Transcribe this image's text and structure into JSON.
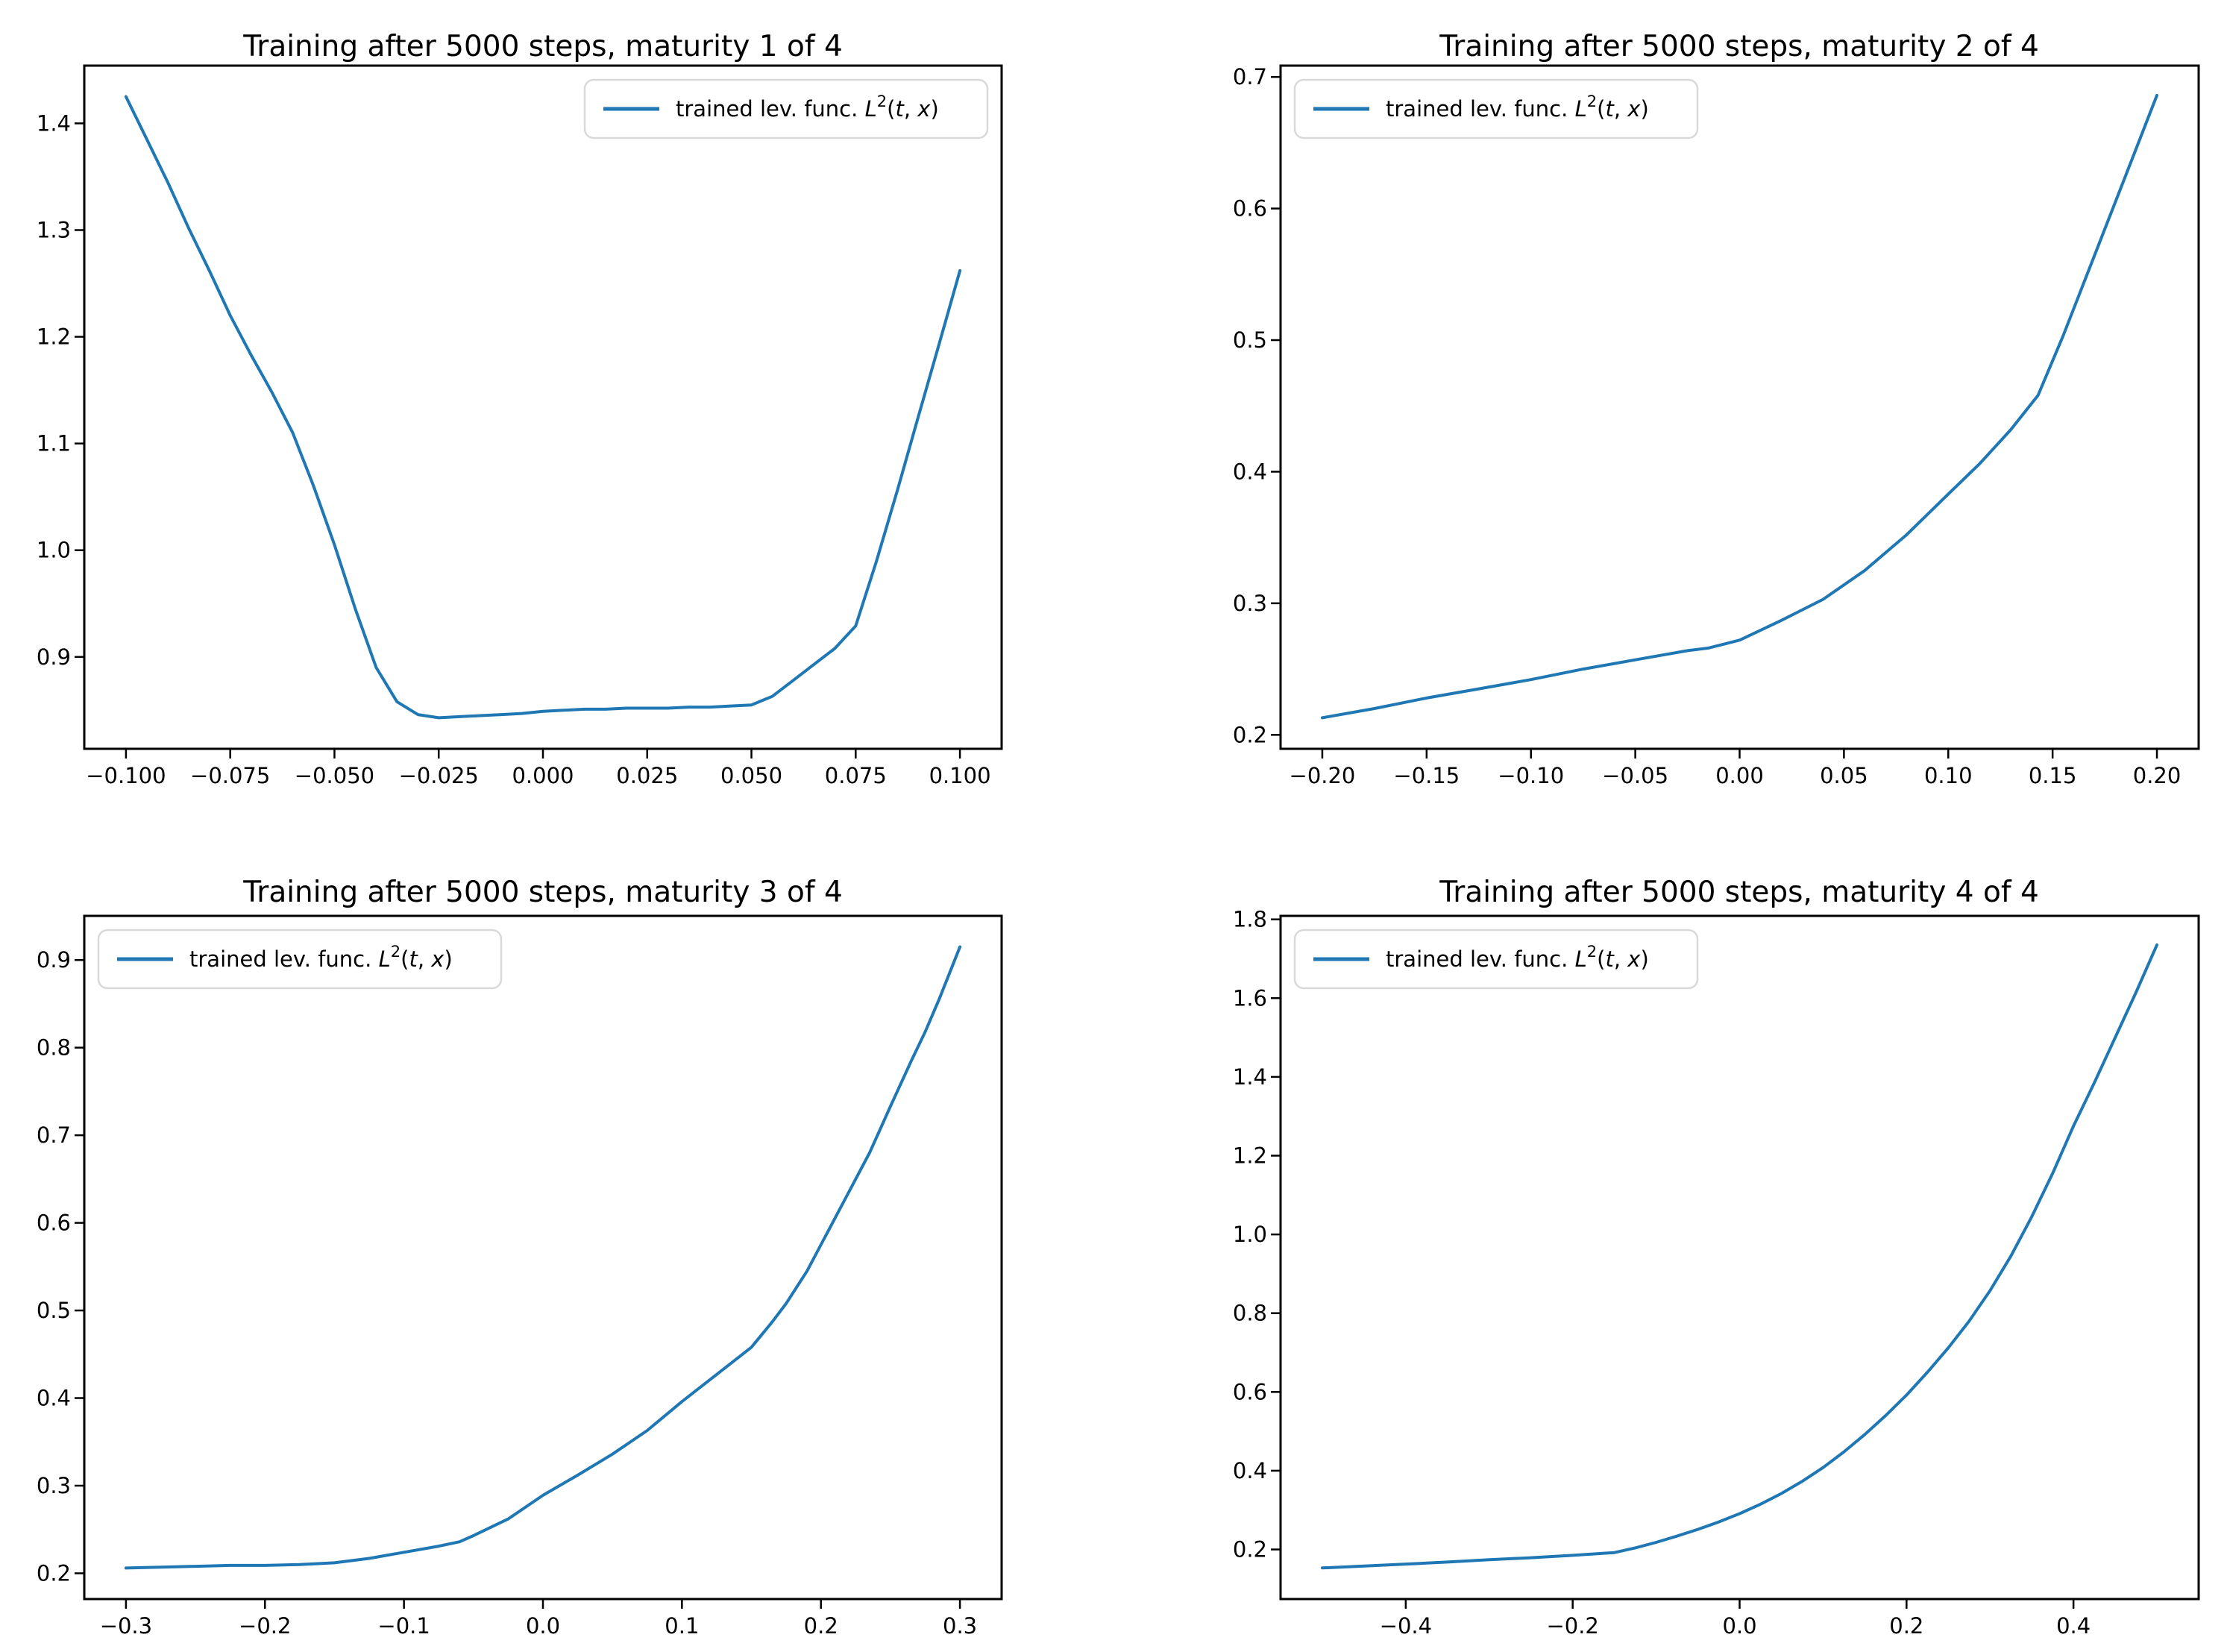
{
  "figure": {
    "background_color": "#ffffff",
    "line_color": "#1f77b4",
    "axis_color": "#000000",
    "legend_border_color": "#d9d9d9",
    "legend_text": "trained lev. func. L²(t, x)",
    "legend_parts": [
      {
        "text": "trained lev. func. ",
        "style": "normal"
      },
      {
        "text": "L",
        "style": "italic"
      },
      {
        "text": "2",
        "style": "superscript"
      },
      {
        "text": "(",
        "style": "normal"
      },
      {
        "text": "t",
        "style": "italic"
      },
      {
        "text": ", ",
        "style": "normal"
      },
      {
        "text": "x",
        "style": "italic"
      },
      {
        "text": ")",
        "style": "normal"
      }
    ]
  },
  "chart_data": [
    {
      "type": "line",
      "title": "Training after 5000 steps, maturity 1 of 4",
      "legend_entries": [
        "trained lev. func. L²(t, x)"
      ],
      "legend_position": "top-right",
      "grid": false,
      "xlim": [
        -0.11,
        0.11
      ],
      "ylim": [
        0.8139,
        1.4541
      ],
      "xticks": {
        "values": [
          -0.1,
          -0.075,
          -0.05,
          -0.025,
          0.0,
          0.025,
          0.05,
          0.075,
          0.1
        ],
        "labels": [
          "−0.100",
          "−0.075",
          "−0.050",
          "−0.025",
          "0.000",
          "0.025",
          "0.050",
          "0.075",
          "0.100"
        ]
      },
      "yticks": {
        "values": [
          0.9,
          1.0,
          1.1,
          1.2,
          1.3,
          1.4
        ],
        "labels": [
          "0.9",
          "1.0",
          "1.1",
          "1.2",
          "1.3",
          "1.4"
        ]
      },
      "series": [
        {
          "name": "trained lev. func. L²(t, x)",
          "x": [
            -0.1,
            -0.095,
            -0.09,
            -0.085,
            -0.08,
            -0.075,
            -0.07,
            -0.065,
            -0.06,
            -0.055,
            -0.05,
            -0.045,
            -0.04,
            -0.035,
            -0.03,
            -0.025,
            -0.02,
            -0.015,
            -0.01,
            -0.005,
            0.0,
            0.005,
            0.01,
            0.015,
            0.02,
            0.025,
            0.03,
            0.035,
            0.04,
            0.045,
            0.05,
            0.055,
            0.06,
            0.065,
            0.07,
            0.075,
            0.08,
            0.085,
            0.09,
            0.095,
            0.1
          ],
          "y": [
            1.425,
            1.385,
            1.345,
            1.302,
            1.262,
            1.22,
            1.183,
            1.148,
            1.11,
            1.06,
            1.005,
            0.945,
            0.89,
            0.858,
            0.846,
            0.843,
            0.844,
            0.845,
            0.846,
            0.847,
            0.849,
            0.85,
            0.851,
            0.851,
            0.852,
            0.852,
            0.852,
            0.853,
            0.853,
            0.854,
            0.855,
            0.863,
            0.878,
            0.893,
            0.908,
            0.929,
            0.99,
            1.056,
            1.125,
            1.193,
            1.262
          ]
        }
      ]
    },
    {
      "type": "line",
      "title": "Training after 5000 steps, maturity 2 of 4",
      "legend_entries": [
        "trained lev. func. L²(t, x)"
      ],
      "legend_position": "top-left",
      "grid": false,
      "xlim": [
        -0.22,
        0.22
      ],
      "ylim": [
        0.1894,
        0.7086
      ],
      "xticks": {
        "values": [
          -0.2,
          -0.15,
          -0.1,
          -0.05,
          0.0,
          0.05,
          0.1,
          0.15,
          0.2
        ],
        "labels": [
          "−0.20",
          "−0.15",
          "−0.10",
          "−0.05",
          "0.00",
          "0.05",
          "0.10",
          "0.15",
          "0.20"
        ]
      },
      "yticks": {
        "values": [
          0.2,
          0.3,
          0.4,
          0.5,
          0.6,
          0.7
        ],
        "labels": [
          "0.2",
          "0.3",
          "0.4",
          "0.5",
          "0.6",
          "0.7"
        ]
      },
      "series": [
        {
          "name": "trained lev. func. L²(t, x)",
          "x": [
            -0.2,
            -0.175,
            -0.15,
            -0.125,
            -0.1,
            -0.075,
            -0.05,
            -0.025,
            -0.015,
            0.0,
            0.02,
            0.04,
            0.06,
            0.08,
            0.1,
            0.115,
            0.13,
            0.143,
            0.155,
            0.17,
            0.185,
            0.2
          ],
          "y": [
            0.213,
            0.22,
            0.228,
            0.235,
            0.242,
            0.25,
            0.257,
            0.264,
            0.266,
            0.272,
            0.287,
            0.303,
            0.325,
            0.352,
            0.383,
            0.406,
            0.432,
            0.458,
            0.503,
            0.564,
            0.625,
            0.686
          ]
        }
      ]
    },
    {
      "type": "line",
      "title": "Training after 5000 steps, maturity 3 of 4",
      "legend_entries": [
        "trained lev. func. L²(t, x)"
      ],
      "legend_position": "top-left",
      "grid": false,
      "xlim": [
        -0.33,
        0.33
      ],
      "ylim": [
        0.1706,
        0.9504
      ],
      "xticks": {
        "values": [
          -0.3,
          -0.2,
          -0.1,
          0.0,
          0.1,
          0.2,
          0.3
        ],
        "labels": [
          "−0.3",
          "−0.2",
          "−0.1",
          "0.0",
          "0.1",
          "0.2",
          "0.3"
        ]
      },
      "yticks": {
        "values": [
          0.2,
          0.3,
          0.4,
          0.5,
          0.6,
          0.7,
          0.8,
          0.9
        ],
        "labels": [
          "0.2",
          "0.3",
          "0.4",
          "0.5",
          "0.6",
          "0.7",
          "0.8",
          "0.9"
        ]
      },
      "series": [
        {
          "name": "trained lev. func. L²(t, x)",
          "x": [
            -0.3,
            -0.275,
            -0.25,
            -0.225,
            -0.2,
            -0.175,
            -0.15,
            -0.125,
            -0.1,
            -0.075,
            -0.06,
            -0.05,
            -0.025,
            0.0,
            0.025,
            0.05,
            0.075,
            0.1,
            0.125,
            0.15,
            0.165,
            0.175,
            0.19,
            0.2,
            0.21,
            0.22,
            0.235,
            0.25,
            0.265,
            0.275,
            0.285,
            0.3
          ],
          "y": [
            0.206,
            0.207,
            0.208,
            0.209,
            0.209,
            0.21,
            0.212,
            0.217,
            0.224,
            0.231,
            0.236,
            0.243,
            0.262,
            0.289,
            0.312,
            0.336,
            0.363,
            0.396,
            0.427,
            0.458,
            0.487,
            0.508,
            0.545,
            0.575,
            0.605,
            0.635,
            0.68,
            0.733,
            0.785,
            0.818,
            0.855,
            0.915
          ]
        }
      ]
    },
    {
      "type": "line",
      "title": "Training after 5000 steps, maturity 4 of 4",
      "legend_entries": [
        "trained lev. func. L²(t, x)"
      ],
      "legend_position": "top-left",
      "grid": false,
      "xlim": [
        -0.55,
        0.55
      ],
      "ylim": [
        0.0741,
        1.8089
      ],
      "xticks": {
        "values": [
          -0.4,
          -0.2,
          0.0,
          0.2,
          0.4
        ],
        "labels": [
          "−0.4",
          "−0.2",
          "0.0",
          "0.2",
          "0.4"
        ]
      },
      "yticks": {
        "values": [
          0.2,
          0.4,
          0.6,
          0.8,
          1.0,
          1.2,
          1.4,
          1.6,
          1.8
        ],
        "labels": [
          "0.2",
          "0.4",
          "0.6",
          "0.8",
          "1.0",
          "1.2",
          "1.4",
          "1.6",
          "1.8"
        ]
      },
      "series": [
        {
          "name": "trained lev. func. L²(t, x)",
          "x": [
            -0.5,
            -0.45,
            -0.4,
            -0.35,
            -0.3,
            -0.25,
            -0.2,
            -0.15,
            -0.125,
            -0.1,
            -0.075,
            -0.05,
            -0.025,
            0.0,
            0.025,
            0.05,
            0.075,
            0.1,
            0.125,
            0.15,
            0.175,
            0.2,
            0.225,
            0.25,
            0.275,
            0.3,
            0.325,
            0.35,
            0.375,
            0.4,
            0.425,
            0.45,
            0.475,
            0.5
          ],
          "y": [
            0.153,
            0.158,
            0.163,
            0.168,
            0.174,
            0.179,
            0.185,
            0.192,
            0.204,
            0.218,
            0.234,
            0.251,
            0.27,
            0.291,
            0.315,
            0.342,
            0.373,
            0.408,
            0.448,
            0.492,
            0.54,
            0.592,
            0.65,
            0.712,
            0.78,
            0.857,
            0.945,
            1.045,
            1.155,
            1.275,
            1.385,
            1.5,
            1.615,
            1.735
          ]
        }
      ]
    }
  ]
}
